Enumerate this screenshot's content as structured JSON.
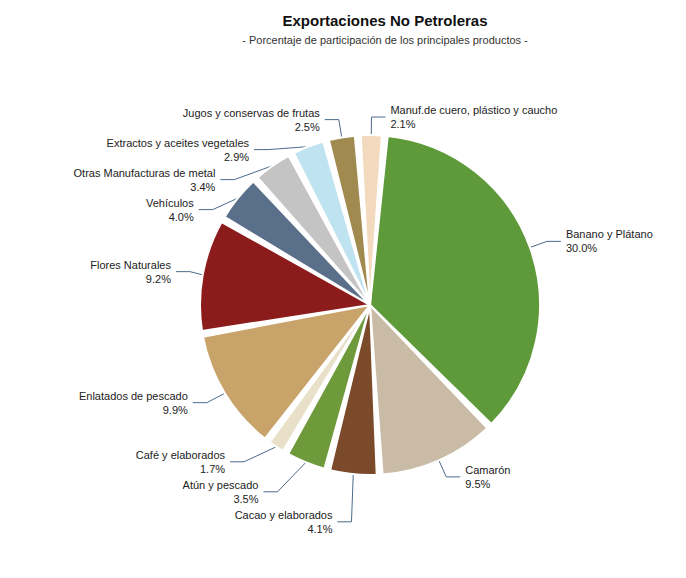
{
  "chart_data": {
    "type": "pie",
    "title": "Exportaciones No Petroleras",
    "subtitle": "- Porcentaje de participación de los principales productos -",
    "categories": [
      "Banano y Plátano",
      "Camarón",
      "Cacao y elaborados",
      "Atún y pescado",
      "Café y elaborados",
      "Enlatados de pescado",
      "Flores Naturales",
      "Vehículos",
      "Otras Manufacturas de metal",
      "Extractos y aceites vegetales",
      "Jugos y conservas de frutas",
      "Manuf.de cuero, plástico y caucho"
    ],
    "values": [
      30.0,
      9.5,
      4.1,
      3.5,
      1.7,
      9.9,
      9.2,
      4.0,
      3.4,
      2.9,
      2.5,
      2.1
    ],
    "value_labels": [
      "30.0%",
      "9.5%",
      "4.1%",
      "3.5%",
      "1.7%",
      "9.9%",
      "9.2%",
      "4.0%",
      "3.4%",
      "2.9%",
      "2.5%",
      "2.1%"
    ],
    "colors": [
      "#5f9a3a",
      "#c9bba6",
      "#7a4a2a",
      "#6f9a3c",
      "#e8e0c8",
      "#c8a46a",
      "#8c1c1c",
      "#5a6f8a",
      "#c4c4c4",
      "#bfe3f0",
      "#a08a50",
      "#f3d9bd"
    ],
    "data_labels": true
  }
}
